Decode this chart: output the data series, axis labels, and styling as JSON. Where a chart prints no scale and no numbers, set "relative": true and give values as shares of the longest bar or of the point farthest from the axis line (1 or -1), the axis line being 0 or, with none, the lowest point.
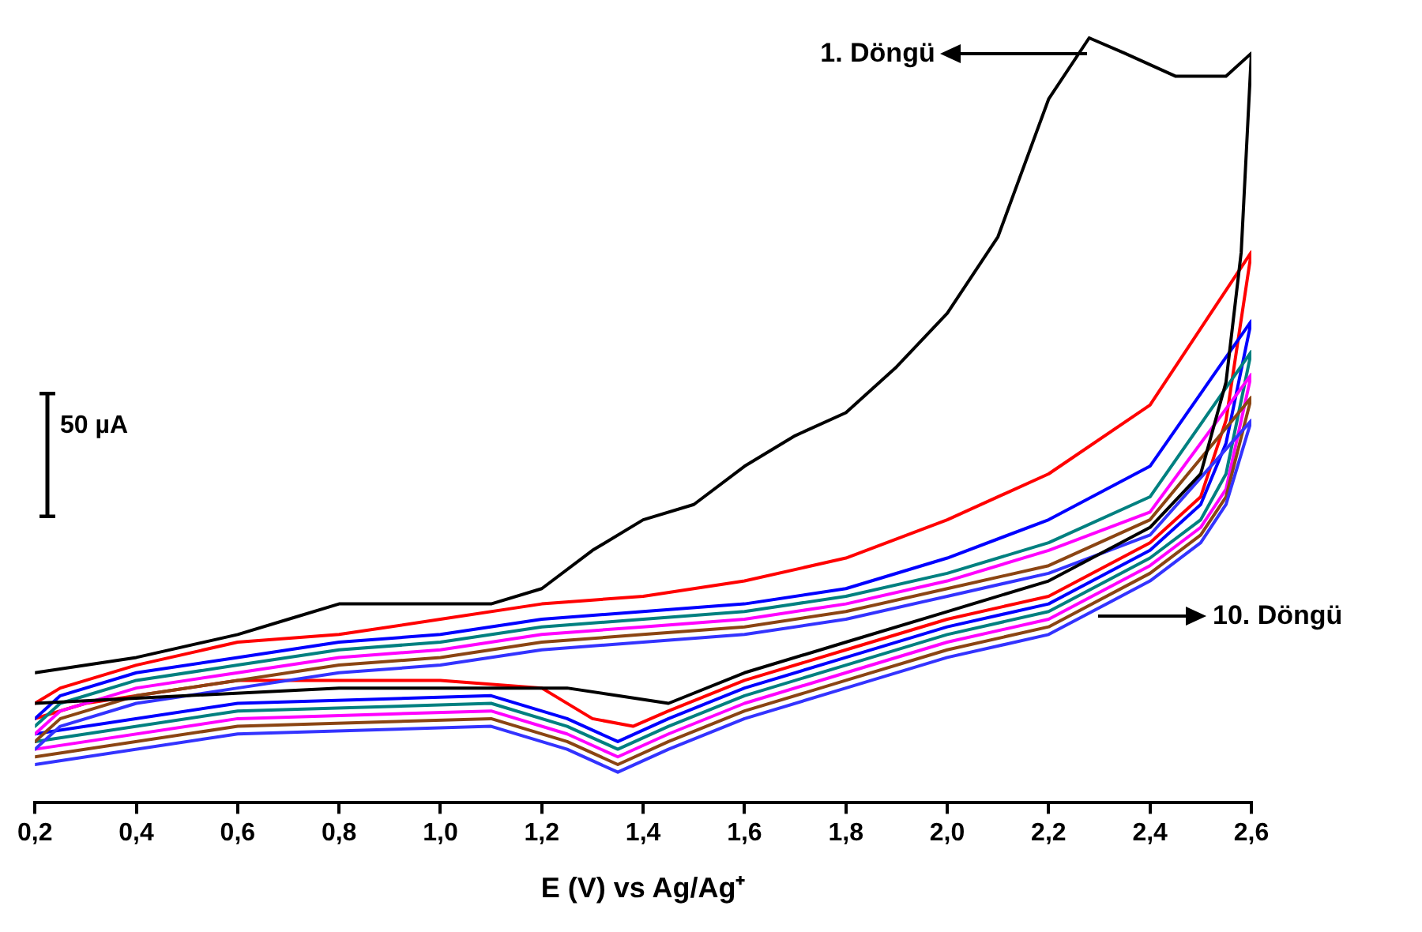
{
  "chart_data": {
    "type": "line",
    "relative": true,
    "xlabel": "E (V) vs Ag/Ag⁺",
    "xlim": [
      0.2,
      2.6
    ],
    "xticks": [
      {
        "value": 0.2,
        "label": "0,2"
      },
      {
        "value": 0.4,
        "label": "0,4"
      },
      {
        "value": 0.6,
        "label": "0,6"
      },
      {
        "value": 0.8,
        "label": "0,8"
      },
      {
        "value": 1.0,
        "label": "1,0"
      },
      {
        "value": 1.2,
        "label": "1,2"
      },
      {
        "value": 1.4,
        "label": "1,4"
      },
      {
        "value": 1.6,
        "label": "1,6"
      },
      {
        "value": 1.8,
        "label": "1,8"
      },
      {
        "value": 2.0,
        "label": "2,0"
      },
      {
        "value": 2.2,
        "label": "2,2"
      },
      {
        "value": 2.4,
        "label": "2,4"
      },
      {
        "value": 2.6,
        "label": "2,6"
      }
    ],
    "grid": false,
    "legend": false,
    "annotations": [
      "1. Döngü",
      "10. Döngü",
      "50 µA"
    ],
    "series": [
      {
        "color": "#000000",
        "x": [
          0.2,
          0.4,
          0.6,
          0.7,
          0.8,
          0.9,
          1.0,
          1.1,
          1.2,
          1.3,
          1.4,
          1.5,
          1.6,
          1.7,
          1.8,
          1.9,
          2.0,
          2.1,
          2.2,
          2.28,
          2.35,
          2.45,
          2.55,
          2.6,
          2.58,
          2.55,
          2.5,
          2.4,
          2.2,
          2.0,
          1.8,
          1.6,
          1.45,
          1.35,
          1.25,
          1.1,
          0.8,
          0.5,
          0.2
        ],
        "values": [
          0.17,
          0.19,
          0.22,
          0.24,
          0.26,
          0.26,
          0.26,
          0.26,
          0.28,
          0.33,
          0.37,
          0.39,
          0.44,
          0.48,
          0.51,
          0.57,
          0.64,
          0.74,
          0.92,
          1.0,
          0.98,
          0.95,
          0.95,
          0.98,
          0.72,
          0.55,
          0.43,
          0.36,
          0.29,
          0.25,
          0.21,
          0.17,
          0.13,
          0.14,
          0.15,
          0.15,
          0.15,
          0.14,
          0.13
        ]
      },
      {
        "color": "#ff0000",
        "x": [
          0.2,
          0.25,
          0.4,
          0.6,
          0.8,
          1.0,
          1.2,
          1.4,
          1.6,
          1.8,
          2.0,
          2.2,
          2.4,
          2.6,
          2.55,
          2.5,
          2.4,
          2.2,
          2.0,
          1.8,
          1.6,
          1.45,
          1.38,
          1.3,
          1.2,
          1.0,
          0.6,
          0.3,
          0.2
        ],
        "values": [
          0.13,
          0.15,
          0.18,
          0.21,
          0.22,
          0.24,
          0.26,
          0.27,
          0.29,
          0.32,
          0.37,
          0.43,
          0.52,
          0.72,
          0.5,
          0.4,
          0.34,
          0.27,
          0.24,
          0.2,
          0.16,
          0.12,
          0.1,
          0.11,
          0.15,
          0.16,
          0.16,
          0.13,
          0.11
        ]
      },
      {
        "color": "#0000ff",
        "x": [
          0.2,
          0.25,
          0.4,
          0.6,
          0.8,
          1.0,
          1.2,
          1.4,
          1.6,
          1.8,
          2.0,
          2.2,
          2.4,
          2.6,
          2.55,
          2.5,
          2.4,
          2.2,
          2.0,
          1.8,
          1.6,
          1.45,
          1.35,
          1.25,
          1.1,
          0.6,
          0.2
        ],
        "values": [
          0.11,
          0.14,
          0.17,
          0.19,
          0.21,
          0.22,
          0.24,
          0.25,
          0.26,
          0.28,
          0.32,
          0.37,
          0.44,
          0.63,
          0.47,
          0.39,
          0.33,
          0.26,
          0.23,
          0.19,
          0.15,
          0.11,
          0.08,
          0.11,
          0.14,
          0.13,
          0.09
        ]
      },
      {
        "color": "#008080",
        "x": [
          0.2,
          0.25,
          0.4,
          0.6,
          0.8,
          1.0,
          1.2,
          1.4,
          1.6,
          1.8,
          2.0,
          2.2,
          2.4,
          2.6,
          2.55,
          2.5,
          2.4,
          2.2,
          2.0,
          1.8,
          1.6,
          1.45,
          1.35,
          1.25,
          1.1,
          0.6,
          0.2
        ],
        "values": [
          0.1,
          0.13,
          0.16,
          0.18,
          0.2,
          0.21,
          0.23,
          0.24,
          0.25,
          0.27,
          0.3,
          0.34,
          0.4,
          0.59,
          0.43,
          0.37,
          0.32,
          0.25,
          0.22,
          0.18,
          0.14,
          0.1,
          0.07,
          0.1,
          0.13,
          0.12,
          0.08
        ]
      },
      {
        "color": "#ff00ff",
        "x": [
          0.2,
          0.25,
          0.4,
          0.6,
          0.8,
          1.0,
          1.2,
          1.4,
          1.6,
          1.8,
          2.0,
          2.2,
          2.4,
          2.6,
          2.55,
          2.5,
          2.4,
          2.2,
          2.0,
          1.8,
          1.6,
          1.45,
          1.35,
          1.25,
          1.1,
          0.6,
          0.2
        ],
        "values": [
          0.09,
          0.12,
          0.15,
          0.17,
          0.19,
          0.2,
          0.22,
          0.23,
          0.24,
          0.26,
          0.29,
          0.33,
          0.38,
          0.56,
          0.41,
          0.36,
          0.31,
          0.24,
          0.21,
          0.17,
          0.13,
          0.09,
          0.06,
          0.09,
          0.12,
          0.11,
          0.07
        ]
      },
      {
        "color": "#8b4513",
        "x": [
          0.2,
          0.25,
          0.4,
          0.6,
          0.8,
          1.0,
          1.2,
          1.4,
          1.6,
          1.8,
          2.0,
          2.2,
          2.4,
          2.6,
          2.55,
          2.5,
          2.4,
          2.2,
          2.0,
          1.8,
          1.6,
          1.45,
          1.35,
          1.25,
          1.1,
          0.6,
          0.2
        ],
        "values": [
          0.08,
          0.11,
          0.14,
          0.16,
          0.18,
          0.19,
          0.21,
          0.22,
          0.23,
          0.25,
          0.28,
          0.31,
          0.37,
          0.53,
          0.4,
          0.35,
          0.3,
          0.23,
          0.2,
          0.16,
          0.12,
          0.08,
          0.05,
          0.08,
          0.11,
          0.1,
          0.06
        ]
      },
      {
        "color": "#3333ff",
        "x": [
          0.2,
          0.25,
          0.4,
          0.6,
          0.8,
          1.0,
          1.2,
          1.4,
          1.6,
          1.8,
          2.0,
          2.2,
          2.4,
          2.6,
          2.55,
          2.5,
          2.4,
          2.2,
          2.0,
          1.8,
          1.6,
          1.45,
          1.35,
          1.25,
          1.1,
          0.6,
          0.2
        ],
        "values": [
          0.07,
          0.1,
          0.13,
          0.15,
          0.17,
          0.18,
          0.2,
          0.21,
          0.22,
          0.24,
          0.27,
          0.3,
          0.35,
          0.5,
          0.39,
          0.34,
          0.29,
          0.22,
          0.19,
          0.15,
          0.11,
          0.07,
          0.04,
          0.07,
          0.1,
          0.09,
          0.05
        ]
      }
    ]
  }
}
